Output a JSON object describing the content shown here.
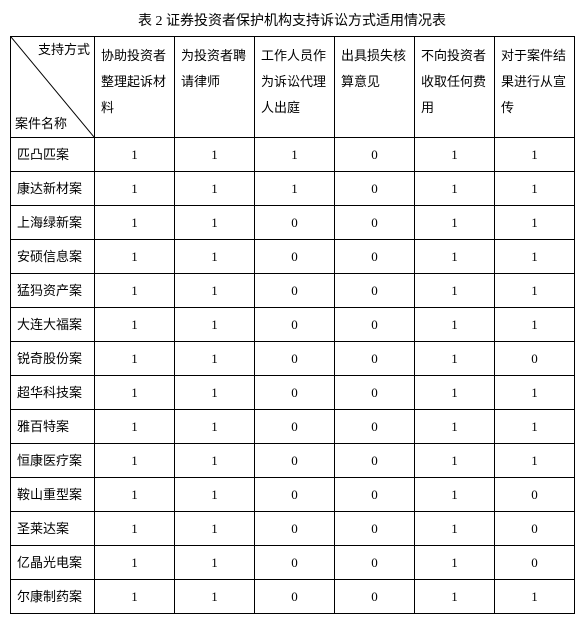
{
  "table": {
    "title": "表 2 证券投资者保护机构支持诉讼方式适用情况表",
    "diag_top_label": "支持方式",
    "diag_bottom_label": "案件名称",
    "columns": [
      "协助投资者整理起诉材料",
      "为投资者聘请律师",
      "工作人员作为诉讼代理人出庭",
      "出具损失核算意见",
      "不向投资者收取任何费用",
      "对于案件结果进行从宣传"
    ],
    "rows": [
      {
        "label": "匹凸匹案",
        "values": [
          1,
          1,
          1,
          0,
          1,
          1
        ]
      },
      {
        "label": "康达新材案",
        "values": [
          1,
          1,
          1,
          0,
          1,
          1
        ]
      },
      {
        "label": "上海绿新案",
        "values": [
          1,
          1,
          0,
          0,
          1,
          1
        ]
      },
      {
        "label": "安硕信息案",
        "values": [
          1,
          1,
          0,
          0,
          1,
          1
        ]
      },
      {
        "label": "猛犸资产案",
        "values": [
          1,
          1,
          0,
          0,
          1,
          1
        ]
      },
      {
        "label": "大连大福案",
        "values": [
          1,
          1,
          0,
          0,
          1,
          1
        ]
      },
      {
        "label": "锐奇股份案",
        "values": [
          1,
          1,
          0,
          0,
          1,
          0
        ]
      },
      {
        "label": "超华科技案",
        "values": [
          1,
          1,
          0,
          0,
          1,
          1
        ]
      },
      {
        "label": "雅百特案",
        "values": [
          1,
          1,
          0,
          0,
          1,
          1
        ]
      },
      {
        "label": "恒康医疗案",
        "values": [
          1,
          1,
          0,
          0,
          1,
          1
        ]
      },
      {
        "label": "鞍山重型案",
        "values": [
          1,
          1,
          0,
          0,
          1,
          0
        ]
      },
      {
        "label": "圣莱达案",
        "values": [
          1,
          1,
          0,
          0,
          1,
          0
        ]
      },
      {
        "label": "亿晶光电案",
        "values": [
          1,
          1,
          0,
          0,
          1,
          0
        ]
      },
      {
        "label": "尔康制药案",
        "values": [
          1,
          1,
          0,
          0,
          1,
          1
        ]
      }
    ],
    "border_color": "#000000",
    "background_color": "#ffffff",
    "text_color": "#000000",
    "font_family": "SimSun",
    "body_fontsize_pt": 10,
    "title_fontsize_pt": 11
  }
}
